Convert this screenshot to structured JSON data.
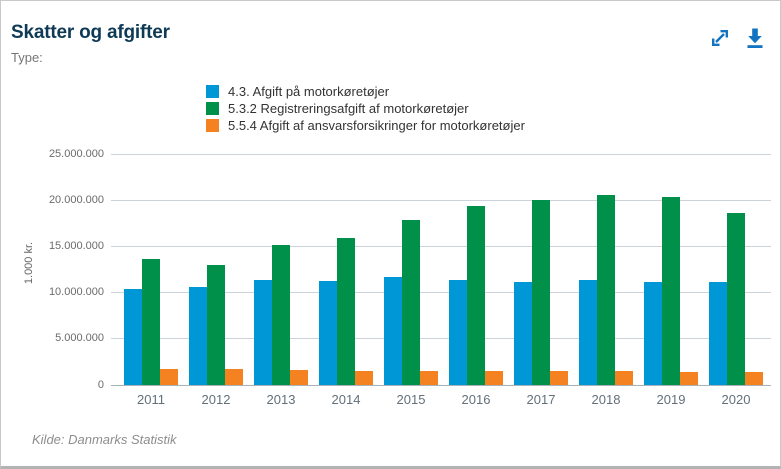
{
  "header": {
    "title": "Skatter og afgifter",
    "type_label": "Type:",
    "icons": [
      {
        "name": "expand-icon",
        "color": "#1173c1"
      },
      {
        "name": "download-icon",
        "color": "#1173c1"
      }
    ]
  },
  "footer": {
    "source": "Kilde: Danmarks Statistik"
  },
  "chart_data": {
    "type": "bar",
    "title": "Skatter og afgifter",
    "categories": [
      "2011",
      "2012",
      "2013",
      "2014",
      "2015",
      "2016",
      "2017",
      "2018",
      "2019",
      "2020"
    ],
    "series": [
      {
        "name": "4.3. Afgift på motorkøretøjer",
        "color": "#0097d7",
        "values": [
          10400000,
          10600000,
          11400000,
          11300000,
          11700000,
          11400000,
          11200000,
          11400000,
          11200000,
          11100000
        ]
      },
      {
        "name": "5.3.2 Registreringsafgift af motorkøretøjer",
        "color": "#009049",
        "values": [
          13600000,
          13000000,
          15200000,
          15900000,
          17900000,
          19400000,
          20000000,
          20600000,
          20300000,
          18600000
        ]
      },
      {
        "name": "5.5.4 Afgift af ansvarsforsikringer for motorkøretøjer",
        "color": "#f58220",
        "values": [
          1700000,
          1700000,
          1600000,
          1500000,
          1500000,
          1500000,
          1500000,
          1500000,
          1400000,
          1400000
        ]
      }
    ],
    "xlabel": "",
    "ylabel": "1.000 kr.",
    "ylim": [
      0,
      25000000
    ],
    "ytick_step": 5000000,
    "yticks": [
      "0",
      "5.000.000",
      "10.000.000",
      "15.000.000",
      "20.000.000",
      "25.000.000"
    ],
    "grid": true,
    "legend_position": "top"
  }
}
